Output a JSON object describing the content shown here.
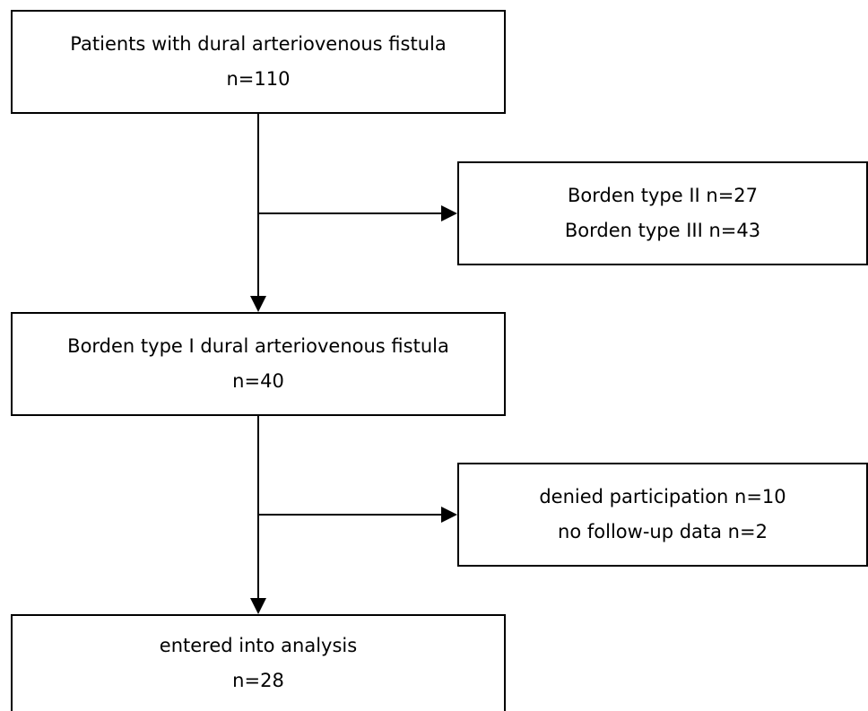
{
  "flowchart": {
    "nodes": [
      {
        "id": "patients",
        "lines": [
          "Patients with dural arteriovenous fistula",
          "n=110"
        ]
      },
      {
        "id": "excluded-types",
        "lines": [
          "Borden type II n=27",
          "Borden type III n=43"
        ]
      },
      {
        "id": "type-i",
        "lines": [
          "Borden type I dural arteriovenous fistula",
          "n=40"
        ]
      },
      {
        "id": "excluded-other",
        "lines": [
          "denied participation n=10",
          "no follow-up data n=2"
        ]
      },
      {
        "id": "analysis",
        "lines": [
          "entered into analysis",
          "n=28"
        ]
      }
    ],
    "edges": [
      {
        "from": "patients",
        "to": "type-i"
      },
      {
        "from": "patients",
        "to": "excluded-types"
      },
      {
        "from": "type-i",
        "to": "analysis"
      },
      {
        "from": "type-i",
        "to": "excluded-other"
      }
    ],
    "colors": {
      "line": "#000000",
      "box_fill": "#ffffff",
      "text": "#000000"
    }
  }
}
